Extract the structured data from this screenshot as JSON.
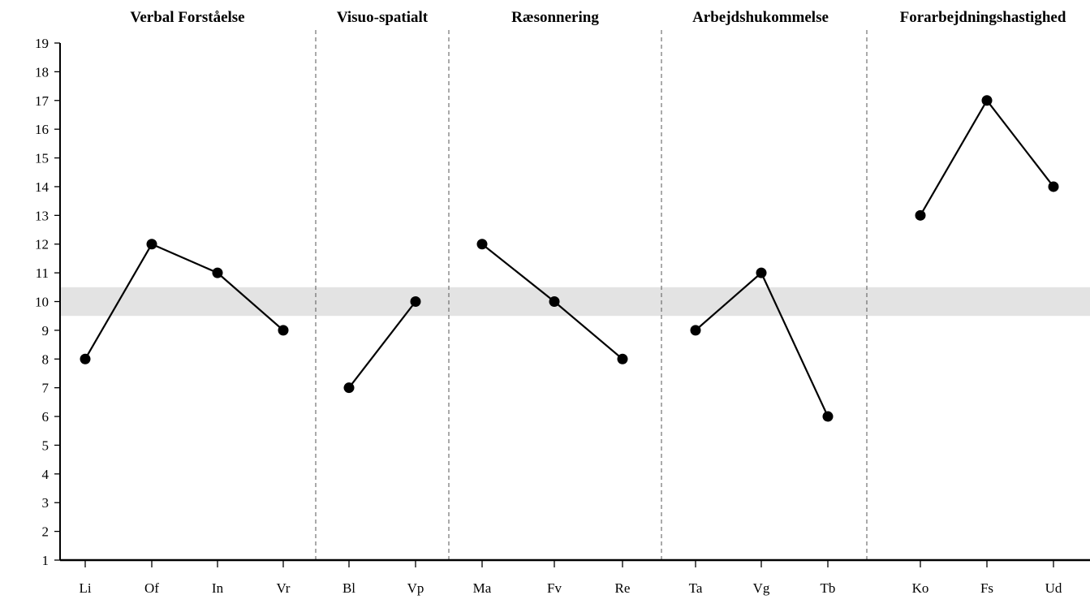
{
  "chart_data": {
    "type": "line",
    "ylim": [
      1,
      19
    ],
    "yticks": [
      "1",
      "2",
      "3",
      "4",
      "5",
      "6",
      "7",
      "8",
      "9",
      "10",
      "11",
      "12",
      "13",
      "14",
      "15",
      "16",
      "17",
      "18",
      "19"
    ],
    "reference_band": [
      9.5,
      10.5
    ],
    "grid": false,
    "groups": [
      {
        "title": "Verbal Forståelse",
        "categories": [
          "Li",
          "Of",
          "In",
          "Vr"
        ],
        "values": [
          8,
          12,
          11,
          9
        ]
      },
      {
        "title": "Visuo-spatialt",
        "categories": [
          "Bl",
          "Vp"
        ],
        "values": [
          7,
          10
        ]
      },
      {
        "title": "Ræsonnering",
        "categories": [
          "Ma",
          "Fv",
          "Re"
        ],
        "values": [
          12,
          10,
          8
        ]
      },
      {
        "title": "Arbejdshukommelse",
        "categories": [
          "Ta",
          "Vg",
          "Tb"
        ],
        "values": [
          9,
          11,
          6
        ]
      },
      {
        "title": "Forarbejdningshastighed",
        "categories": [
          "Ko",
          "Fs",
          "Ud"
        ],
        "values": [
          13,
          17,
          14
        ]
      }
    ],
    "colors": {
      "line": "#000000",
      "marker": "#000000",
      "band": "#e3e3e3",
      "divider": "#555555"
    }
  }
}
